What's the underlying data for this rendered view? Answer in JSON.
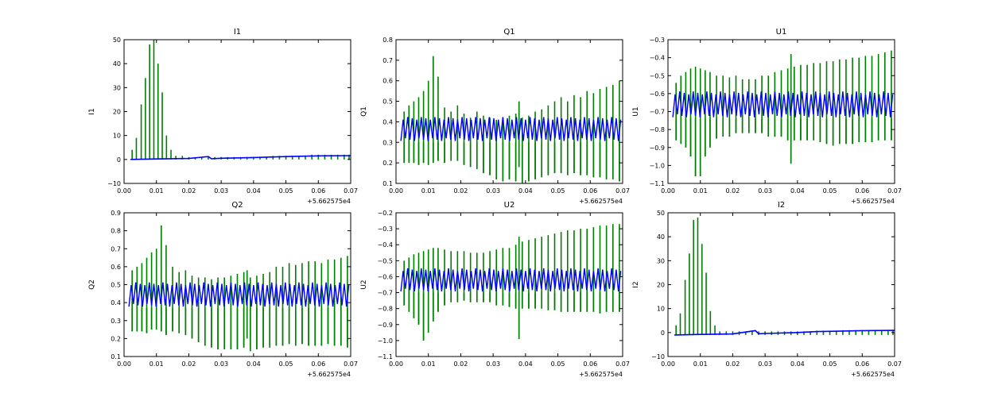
{
  "colors": {
    "series_a": "#0000ff",
    "series_b": "#008000",
    "axes": "#000000",
    "background": "#ffffff"
  },
  "chart_data": [
    {
      "type": "line",
      "title": "I1",
      "ylabel": "I1",
      "xlabel": "",
      "x_offset_label": "+5.662575e4",
      "xlim": [
        0.0,
        0.07
      ],
      "ylim": [
        -10,
        50
      ],
      "xticks": [
        0.0,
        0.01,
        0.02,
        0.03,
        0.04,
        0.05,
        0.06,
        0.07
      ],
      "xtick_labels": [
        "0.00",
        "0.01",
        "0.02",
        "0.03",
        "0.04",
        "0.05",
        "0.06",
        "0.07"
      ],
      "yticks": [
        -10,
        0,
        10,
        20,
        30,
        40,
        50
      ],
      "ytick_labels": [
        "−10",
        "0",
        "10",
        "20",
        "30",
        "40",
        "50"
      ],
      "series": [
        {
          "name": "blue",
          "x": [
            0.002,
            0.01,
            0.02,
            0.026,
            0.027,
            0.03,
            0.04,
            0.045,
            0.05,
            0.06,
            0.07
          ],
          "y": [
            0.0,
            0.2,
            0.4,
            1.2,
            0.3,
            0.5,
            0.8,
            1.0,
            1.2,
            1.5,
            1.6
          ]
        },
        {
          "name": "green",
          "spikes_x": [
            0.0025,
            0.0038,
            0.0053,
            0.0066,
            0.0079,
            0.0092,
            0.0105,
            0.0118,
            0.0131,
            0.0145,
            0.016,
            0.018,
            0.02,
            0.022,
            0.024,
            0.026,
            0.028,
            0.03,
            0.032,
            0.034,
            0.036,
            0.038,
            0.04,
            0.042,
            0.044,
            0.046,
            0.048,
            0.05,
            0.052,
            0.054,
            0.056,
            0.058,
            0.06,
            0.062,
            0.064,
            0.066,
            0.068,
            0.0695
          ],
          "spikes_y": [
            4,
            9,
            23,
            34,
            48,
            50,
            40,
            28,
            10,
            4,
            1.5,
            1.5,
            1,
            1,
            1,
            1,
            1,
            1,
            1,
            1,
            1,
            1,
            1,
            1,
            1,
            1.5,
            1.5,
            1.5,
            1.5,
            1.5,
            1.5,
            2,
            2,
            2,
            2,
            2,
            2,
            2
          ],
          "baseline": 0
        }
      ]
    },
    {
      "type": "line",
      "title": "Q1",
      "ylabel": "Q1",
      "xlabel": "",
      "x_offset_label": "+5.662575e4",
      "xlim": [
        0.0,
        0.07
      ],
      "ylim": [
        0.1,
        0.8
      ],
      "xticks": [
        0.0,
        0.01,
        0.02,
        0.03,
        0.04,
        0.05,
        0.06,
        0.07
      ],
      "xtick_labels": [
        "0.00",
        "0.01",
        "0.02",
        "0.03",
        "0.04",
        "0.05",
        "0.06",
        "0.07"
      ],
      "yticks": [
        0.1,
        0.2,
        0.3,
        0.4,
        0.5,
        0.6,
        0.7,
        0.8
      ],
      "ytick_labels": [
        "0.1",
        "0.2",
        "0.3",
        "0.4",
        "0.5",
        "0.6",
        "0.7",
        "0.8"
      ],
      "series": [
        {
          "name": "blue",
          "band": [
            0.3,
            0.43
          ]
        },
        {
          "name": "green",
          "spikes_x": [
            0.0025,
            0.004,
            0.0055,
            0.007,
            0.0085,
            0.01,
            0.0115,
            0.013,
            0.015,
            0.017,
            0.019,
            0.021,
            0.023,
            0.025,
            0.027,
            0.029,
            0.031,
            0.033,
            0.035,
            0.037,
            0.038,
            0.039,
            0.041,
            0.043,
            0.045,
            0.047,
            0.049,
            0.051,
            0.053,
            0.055,
            0.057,
            0.059,
            0.061,
            0.063,
            0.065,
            0.067,
            0.069
          ],
          "spikes_hi": [
            0.45,
            0.48,
            0.5,
            0.52,
            0.55,
            0.6,
            0.72,
            0.62,
            0.47,
            0.45,
            0.48,
            0.44,
            0.42,
            0.45,
            0.43,
            0.42,
            0.41,
            0.42,
            0.43,
            0.44,
            0.5,
            0.42,
            0.43,
            0.45,
            0.46,
            0.48,
            0.5,
            0.52,
            0.5,
            0.53,
            0.52,
            0.55,
            0.54,
            0.56,
            0.57,
            0.58,
            0.6
          ],
          "spikes_lo": [
            0.2,
            0.2,
            0.2,
            0.19,
            0.2,
            0.19,
            0.2,
            0.21,
            0.2,
            0.21,
            0.21,
            0.19,
            0.18,
            0.17,
            0.15,
            0.14,
            0.12,
            0.11,
            0.12,
            0.11,
            0.18,
            0.1,
            0.11,
            0.12,
            0.13,
            0.14,
            0.15,
            0.15,
            0.14,
            0.15,
            0.14,
            0.14,
            0.13,
            0.13,
            0.12,
            0.12,
            0.11
          ]
        }
      ]
    },
    {
      "type": "line",
      "title": "U1",
      "ylabel": "U1",
      "xlabel": "",
      "x_offset_label": "+5.662575e4",
      "xlim": [
        0.0,
        0.07
      ],
      "ylim": [
        -1.1,
        -0.3
      ],
      "xticks": [
        0.0,
        0.01,
        0.02,
        0.03,
        0.04,
        0.05,
        0.06,
        0.07
      ],
      "xtick_labels": [
        "0.00",
        "0.01",
        "0.02",
        "0.03",
        "0.04",
        "0.05",
        "0.06",
        "0.07"
      ],
      "yticks": [
        -1.1,
        -1.0,
        -0.9,
        -0.8,
        -0.7,
        -0.6,
        -0.5,
        -0.4,
        -0.3
      ],
      "ytick_labels": [
        "−1.1",
        "−1.0",
        "−0.9",
        "−0.8",
        "−0.7",
        "−0.6",
        "−0.5",
        "−0.4",
        "−0.3"
      ],
      "series": [
        {
          "name": "blue",
          "band": [
            -0.74,
            -0.58
          ]
        },
        {
          "name": "green",
          "spikes_x": [
            0.0025,
            0.004,
            0.0055,
            0.007,
            0.0085,
            0.01,
            0.0115,
            0.013,
            0.015,
            0.017,
            0.019,
            0.021,
            0.023,
            0.025,
            0.027,
            0.029,
            0.031,
            0.033,
            0.035,
            0.037,
            0.038,
            0.039,
            0.041,
            0.043,
            0.045,
            0.047,
            0.049,
            0.051,
            0.053,
            0.055,
            0.057,
            0.059,
            0.061,
            0.063,
            0.065,
            0.067,
            0.069
          ],
          "spikes_hi": [
            -0.54,
            -0.5,
            -0.48,
            -0.46,
            -0.45,
            -0.46,
            -0.47,
            -0.48,
            -0.5,
            -0.5,
            -0.51,
            -0.5,
            -0.52,
            -0.52,
            -0.52,
            -0.5,
            -0.5,
            -0.48,
            -0.47,
            -0.46,
            -0.38,
            -0.45,
            -0.44,
            -0.44,
            -0.43,
            -0.43,
            -0.42,
            -0.42,
            -0.41,
            -0.41,
            -0.4,
            -0.4,
            -0.39,
            -0.39,
            -0.38,
            -0.37,
            -0.36
          ],
          "spikes_lo": [
            -0.86,
            -0.88,
            -0.9,
            -0.95,
            -1.06,
            -1.06,
            -0.95,
            -0.9,
            -0.85,
            -0.84,
            -0.84,
            -0.82,
            -0.82,
            -0.82,
            -0.82,
            -0.82,
            -0.84,
            -0.84,
            -0.84,
            -0.86,
            -0.99,
            -0.86,
            -0.86,
            -0.86,
            -0.86,
            -0.87,
            -0.88,
            -0.89,
            -0.88,
            -0.88,
            -0.88,
            -0.87,
            -0.87,
            -0.87,
            -0.86,
            -0.86,
            -0.86
          ]
        }
      ]
    },
    {
      "type": "line",
      "title": "Q2",
      "ylabel": "Q2",
      "xlabel": "",
      "x_offset_label": "+5.662575e4",
      "xlim": [
        0.0,
        0.07
      ],
      "ylim": [
        0.1,
        0.9
      ],
      "xticks": [
        0.0,
        0.01,
        0.02,
        0.03,
        0.04,
        0.05,
        0.06,
        0.07
      ],
      "xtick_labels": [
        "0.00",
        "0.01",
        "0.02",
        "0.03",
        "0.04",
        "0.05",
        "0.06",
        "0.07"
      ],
      "yticks": [
        0.1,
        0.2,
        0.3,
        0.4,
        0.5,
        0.6,
        0.7,
        0.8,
        0.9
      ],
      "ytick_labels": [
        "0.1",
        "0.2",
        "0.3",
        "0.4",
        "0.5",
        "0.6",
        "0.7",
        "0.8",
        "0.9"
      ],
      "series": [
        {
          "name": "blue",
          "band": [
            0.37,
            0.52
          ]
        },
        {
          "name": "green",
          "spikes_x": [
            0.0025,
            0.004,
            0.0055,
            0.007,
            0.0085,
            0.01,
            0.0115,
            0.013,
            0.015,
            0.017,
            0.019,
            0.021,
            0.023,
            0.025,
            0.027,
            0.029,
            0.031,
            0.033,
            0.035,
            0.037,
            0.038,
            0.039,
            0.041,
            0.043,
            0.045,
            0.047,
            0.049,
            0.051,
            0.053,
            0.055,
            0.057,
            0.059,
            0.061,
            0.063,
            0.065,
            0.067,
            0.069
          ],
          "spikes_hi": [
            0.58,
            0.6,
            0.62,
            0.65,
            0.68,
            0.7,
            0.83,
            0.72,
            0.6,
            0.57,
            0.58,
            0.55,
            0.54,
            0.54,
            0.53,
            0.54,
            0.54,
            0.55,
            0.56,
            0.57,
            0.58,
            0.54,
            0.55,
            0.56,
            0.57,
            0.6,
            0.6,
            0.62,
            0.61,
            0.62,
            0.63,
            0.63,
            0.62,
            0.64,
            0.64,
            0.65,
            0.66
          ],
          "spikes_lo": [
            0.24,
            0.24,
            0.24,
            0.23,
            0.25,
            0.25,
            0.24,
            0.22,
            0.24,
            0.23,
            0.22,
            0.2,
            0.18,
            0.16,
            0.15,
            0.14,
            0.14,
            0.14,
            0.14,
            0.15,
            0.2,
            0.13,
            0.14,
            0.15,
            0.15,
            0.16,
            0.16,
            0.17,
            0.16,
            0.17,
            0.16,
            0.16,
            0.16,
            0.17,
            0.16,
            0.16,
            0.15
          ]
        }
      ]
    },
    {
      "type": "line",
      "title": "U2",
      "ylabel": "U2",
      "xlabel": "",
      "x_offset_label": "+5.662575e4",
      "xlim": [
        0.0,
        0.07
      ],
      "ylim": [
        -1.1,
        -0.2
      ],
      "xticks": [
        0.0,
        0.01,
        0.02,
        0.03,
        0.04,
        0.05,
        0.06,
        0.07
      ],
      "xtick_labels": [
        "0.00",
        "0.01",
        "0.02",
        "0.03",
        "0.04",
        "0.05",
        "0.06",
        "0.07"
      ],
      "yticks": [
        -1.1,
        -1.0,
        -0.9,
        -0.8,
        -0.7,
        -0.6,
        -0.5,
        -0.4,
        -0.3,
        -0.2
      ],
      "ytick_labels": [
        "−1.1",
        "−1.0",
        "−0.9",
        "−0.8",
        "−0.7",
        "−0.6",
        "−0.5",
        "−0.4",
        "−0.3",
        "−0.2"
      ],
      "series": [
        {
          "name": "blue",
          "band": [
            -0.7,
            -0.54
          ]
        },
        {
          "name": "green",
          "spikes_x": [
            0.0025,
            0.004,
            0.0055,
            0.007,
            0.0085,
            0.01,
            0.0115,
            0.013,
            0.015,
            0.017,
            0.019,
            0.021,
            0.023,
            0.025,
            0.027,
            0.029,
            0.031,
            0.033,
            0.035,
            0.037,
            0.038,
            0.039,
            0.041,
            0.043,
            0.045,
            0.047,
            0.049,
            0.051,
            0.053,
            0.055,
            0.057,
            0.059,
            0.061,
            0.063,
            0.065,
            0.067,
            0.069
          ],
          "spikes_hi": [
            -0.5,
            -0.48,
            -0.46,
            -0.45,
            -0.44,
            -0.43,
            -0.42,
            -0.42,
            -0.43,
            -0.44,
            -0.44,
            -0.44,
            -0.45,
            -0.45,
            -0.45,
            -0.44,
            -0.43,
            -0.42,
            -0.42,
            -0.4,
            -0.35,
            -0.38,
            -0.37,
            -0.36,
            -0.35,
            -0.34,
            -0.33,
            -0.32,
            -0.31,
            -0.31,
            -0.3,
            -0.3,
            -0.29,
            -0.28,
            -0.28,
            -0.27,
            -0.27
          ],
          "spikes_lo": [
            -0.78,
            -0.82,
            -0.86,
            -0.9,
            -1.0,
            -0.95,
            -0.88,
            -0.82,
            -0.78,
            -0.76,
            -0.76,
            -0.75,
            -0.76,
            -0.76,
            -0.76,
            -0.76,
            -0.78,
            -0.78,
            -0.79,
            -0.8,
            -0.99,
            -0.8,
            -0.8,
            -0.8,
            -0.8,
            -0.81,
            -0.81,
            -0.82,
            -0.82,
            -0.82,
            -0.82,
            -0.82,
            -0.82,
            -0.83,
            -0.82,
            -0.82,
            -0.82
          ]
        }
      ]
    },
    {
      "type": "line",
      "title": "I2",
      "ylabel": "I2",
      "xlabel": "",
      "x_offset_label": "+5.662575e4",
      "xlim": [
        0.0,
        0.07
      ],
      "ylim": [
        -10,
        50
      ],
      "xticks": [
        0.0,
        0.01,
        0.02,
        0.03,
        0.04,
        0.05,
        0.06,
        0.07
      ],
      "xtick_labels": [
        "0.00",
        "0.01",
        "0.02",
        "0.03",
        "0.04",
        "0.05",
        "0.06",
        "0.07"
      ],
      "yticks": [
        -10,
        0,
        10,
        20,
        30,
        40,
        50
      ],
      "ytick_labels": [
        "−10",
        "0",
        "10",
        "20",
        "30",
        "40",
        "50"
      ],
      "series": [
        {
          "name": "blue",
          "x": [
            0.002,
            0.01,
            0.02,
            0.027,
            0.028,
            0.03,
            0.04,
            0.046,
            0.05,
            0.06,
            0.07
          ],
          "y": [
            -1.0,
            -0.8,
            -0.6,
            0.8,
            -0.5,
            -0.4,
            0.0,
            0.4,
            0.5,
            0.8,
            0.9
          ]
        },
        {
          "name": "green",
          "spikes_x": [
            0.0025,
            0.0038,
            0.0053,
            0.0066,
            0.0079,
            0.0092,
            0.0105,
            0.0118,
            0.0131,
            0.0145,
            0.016,
            0.018,
            0.02,
            0.022,
            0.024,
            0.026,
            0.028,
            0.03,
            0.032,
            0.034,
            0.036,
            0.038,
            0.04,
            0.042,
            0.044,
            0.046,
            0.048,
            0.05,
            0.052,
            0.054,
            0.056,
            0.058,
            0.06,
            0.062,
            0.064,
            0.066,
            0.068,
            0.0695
          ],
          "spikes_y": [
            3,
            8,
            22,
            33,
            47,
            48,
            37,
            25,
            9,
            3,
            0.5,
            0.5,
            0.5,
            0.5,
            0.5,
            0.5,
            0.5,
            0.5,
            0.5,
            0.5,
            0.5,
            0.5,
            0.5,
            0.5,
            0.5,
            0.8,
            0.8,
            0.8,
            0.8,
            1,
            1,
            1,
            1,
            1,
            1,
            1,
            1,
            1
          ],
          "baseline": -1
        }
      ]
    }
  ]
}
